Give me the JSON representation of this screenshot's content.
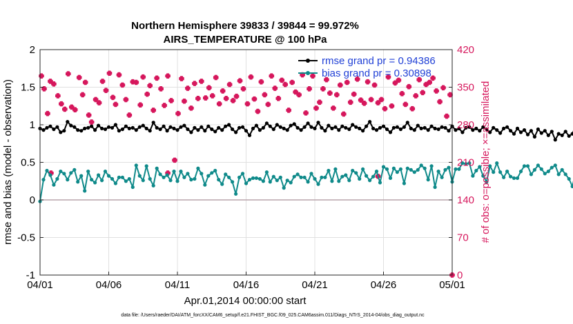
{
  "colors": {
    "rmse": "#000000",
    "bias": "#0f8a8a",
    "obs": "#d6175c",
    "legend_text": "#1f3fd6",
    "grid": "#e0e0e0",
    "zero_line": "#b9a3aa"
  },
  "chart_data": {
    "type": "line",
    "title": [
      "Northern Hemisphere 39833 / 39844 = 99.972%",
      "AIRS_TEMPERATURE @ 100 hPa"
    ],
    "xlabel": "Apr.01,2014 00:00:00 start",
    "ylabel": "rmse and bias (model - observation)",
    "ylabel_right": "# of obs: o=possible; ×=assimilated",
    "x_ticks": [
      "04/01",
      "04/06",
      "04/11",
      "04/16",
      "04/21",
      "04/26",
      "05/01"
    ],
    "xlim_days": [
      0,
      30
    ],
    "ylim": [
      -1,
      2
    ],
    "y_ticks": [
      "2",
      "1.5",
      "1",
      "0.5",
      "0",
      "-0.5",
      "-1"
    ],
    "ylim_right": [
      0,
      420
    ],
    "y_ticks_right": [
      "420",
      "350",
      "280",
      "210",
      "140",
      "70",
      "0"
    ],
    "legend": [
      {
        "name": "rmse grand pr = 0.94386",
        "series": "rmse"
      },
      {
        "name": "bias grand pr = 0.30898",
        "series": "bias"
      }
    ],
    "step_days": 0.25,
    "series": [
      {
        "name": "rmse",
        "values": [
          0.95,
          0.93,
          0.96,
          0.98,
          0.94,
          0.97,
          0.9,
          0.92,
          1.04,
          0.99,
          0.97,
          0.93,
          0.92,
          0.95,
          0.96,
          0.98,
          0.93,
          0.99,
          0.95,
          0.94,
          0.97,
          0.96,
          1.0,
          0.92,
          0.94,
          0.98,
          0.95,
          0.96,
          0.93,
          0.97,
          0.99,
          0.95,
          0.92,
          1.03,
          0.96,
          0.94,
          0.98,
          0.92,
          0.97,
          0.95,
          0.93,
          0.97,
          0.99,
          0.94,
          0.9,
          0.96,
          0.93,
          0.97,
          0.92,
          0.98,
          0.94,
          0.91,
          0.96,
          0.93,
          0.98,
          1.0,
          0.94,
          0.9,
          0.96,
          0.97,
          0.92,
          0.86,
          0.95,
          0.99,
          0.93,
          0.96,
          1.02,
          0.98,
          0.94,
          1.0,
          0.97,
          0.95,
          0.93,
          0.99,
          1.01,
          0.96,
          0.93,
          0.97,
          1.02,
          0.97,
          0.95,
          1.03,
          0.96,
          0.92,
          0.99,
          0.95,
          0.97,
          0.93,
          0.98,
          0.96,
          0.94,
          1.0,
          0.97,
          0.95,
          0.92,
          0.98,
          1.04,
          0.95,
          0.93,
          0.96,
          0.98,
          0.94,
          0.9,
          0.96,
          0.97,
          0.94,
          0.97,
          1.03,
          0.95,
          0.93,
          0.99,
          0.95,
          0.96,
          0.93,
          0.98,
          0.95,
          0.94,
          0.97,
          0.96,
          0.92,
          0.98,
          0.93,
          0.95,
          0.9,
          0.96,
          0.97,
          0.93,
          0.95,
          0.92,
          0.97,
          0.94,
          0.9,
          0.96,
          0.93,
          0.89,
          0.95,
          0.97,
          0.92,
          0.88,
          0.95,
          0.9,
          0.93,
          0.87,
          0.92,
          0.84,
          0.94,
          0.89,
          0.92,
          0.86,
          0.91,
          0.8,
          0.88,
          0.86,
          0.91,
          0.85,
          0.88,
          0.99,
          0.84,
          0.92,
          0.93
        ]
      },
      {
        "name": "bias",
        "values": [
          -0.02,
          0.27,
          0.39,
          0.33,
          0.2,
          0.28,
          0.38,
          0.35,
          0.27,
          0.36,
          0.4,
          0.24,
          0.32,
          0.12,
          0.38,
          0.27,
          0.23,
          0.33,
          0.26,
          0.38,
          0.32,
          0.28,
          0.22,
          0.3,
          0.3,
          0.25,
          0.28,
          0.17,
          0.46,
          0.32,
          0.26,
          0.45,
          0.28,
          0.19,
          0.42,
          0.34,
          0.3,
          0.33,
          0.26,
          0.38,
          0.25,
          0.38,
          0.3,
          0.35,
          0.27,
          0.28,
          0.42,
          0.35,
          0.2,
          0.32,
          0.36,
          0.39,
          0.27,
          0.21,
          0.34,
          0.3,
          0.24,
          0.08,
          0.3,
          0.35,
          0.22,
          0.27,
          0.29,
          0.29,
          0.28,
          0.25,
          0.37,
          0.24,
          0.31,
          0.26,
          0.3,
          0.16,
          0.26,
          0.23,
          0.31,
          0.34,
          0.3,
          0.3,
          0.24,
          0.35,
          0.28,
          0.21,
          0.3,
          0.3,
          0.39,
          0.25,
          0.41,
          0.25,
          0.31,
          0.33,
          0.26,
          0.39,
          0.36,
          0.28,
          0.41,
          0.32,
          0.26,
          0.31,
          0.38,
          0.23,
          0.44,
          0.41,
          0.29,
          0.42,
          0.37,
          0.41,
          0.22,
          0.42,
          0.4,
          0.37,
          0.4,
          0.46,
          0.42,
          0.27,
          0.45,
          0.17,
          0.38,
          0.3,
          0.4,
          0.43,
          0.24,
          0.41,
          0.41,
          0.49,
          0.48,
          0.49,
          0.32,
          0.39,
          0.44,
          0.32,
          0.24,
          0.45,
          0.37,
          0.49,
          0.37,
          0.3,
          0.38,
          0.31,
          0.29,
          0.29,
          0.38,
          0.45,
          0.45,
          0.34,
          0.4,
          0.46,
          0.41,
          0.35,
          0.38,
          0.43,
          0.46,
          0.34,
          0.4,
          0.34,
          0.28,
          0.18,
          0.38,
          0.36,
          0.21,
          0.38,
          0.28,
          0.38,
          0.44,
          0.35,
          0.29
        ]
      }
    ],
    "assimilated_obs": [
      {
        "day": 0.1,
        "count": 371
      },
      {
        "day": 0.3,
        "count": 347
      },
      {
        "day": 0.55,
        "count": 301
      },
      {
        "day": 0.75,
        "count": 361
      },
      {
        "day": 1.0,
        "count": 356
      },
      {
        "day": 1.3,
        "count": 334
      },
      {
        "day": 1.55,
        "count": 319
      },
      {
        "day": 1.8,
        "count": 309
      },
      {
        "day": 2.05,
        "count": 375
      },
      {
        "day": 2.3,
        "count": 313
      },
      {
        "day": 2.55,
        "count": 308
      },
      {
        "day": 2.85,
        "count": 368
      },
      {
        "day": 3.1,
        "count": 336
      },
      {
        "day": 3.3,
        "count": 359
      },
      {
        "day": 3.55,
        "count": 298
      },
      {
        "day": 3.75,
        "count": 285
      },
      {
        "day": 4.05,
        "count": 327
      },
      {
        "day": 4.3,
        "count": 321
      },
      {
        "day": 4.55,
        "count": 361
      },
      {
        "day": 4.8,
        "count": 344
      },
      {
        "day": 5.05,
        "count": 376
      },
      {
        "day": 5.3,
        "count": 331
      },
      {
        "day": 5.5,
        "count": 318
      },
      {
        "day": 5.75,
        "count": 373
      },
      {
        "day": 6.0,
        "count": 354
      },
      {
        "day": 6.25,
        "count": 327
      },
      {
        "day": 6.5,
        "count": 298
      },
      {
        "day": 6.75,
        "count": 360
      },
      {
        "day": 7.0,
        "count": 359
      },
      {
        "day": 7.3,
        "count": 317
      },
      {
        "day": 7.5,
        "count": 369
      },
      {
        "day": 7.8,
        "count": 337
      },
      {
        "day": 8.0,
        "count": 353
      },
      {
        "day": 8.25,
        "count": 307
      },
      {
        "day": 8.5,
        "count": 367
      },
      {
        "day": 8.8,
        "count": 347
      },
      {
        "day": 9.05,
        "count": 316
      },
      {
        "day": 9.3,
        "count": 371
      },
      {
        "day": 9.55,
        "count": 325
      },
      {
        "day": 9.8,
        "count": 214
      },
      {
        "day": 10.05,
        "count": 301
      },
      {
        "day": 10.3,
        "count": 366
      },
      {
        "day": 10.5,
        "count": 324
      },
      {
        "day": 10.75,
        "count": 348
      },
      {
        "day": 11.0,
        "count": 311
      },
      {
        "day": 11.25,
        "count": 357
      },
      {
        "day": 11.5,
        "count": 329
      },
      {
        "day": 11.75,
        "count": 361
      },
      {
        "day": 12.05,
        "count": 330
      },
      {
        "day": 12.3,
        "count": 349
      },
      {
        "day": 12.55,
        "count": 334
      },
      {
        "day": 12.8,
        "count": 368
      },
      {
        "day": 13.05,
        "count": 319
      },
      {
        "day": 13.3,
        "count": 343
      },
      {
        "day": 13.55,
        "count": 329
      },
      {
        "day": 13.8,
        "count": 355
      },
      {
        "day": 14.05,
        "count": 325
      },
      {
        "day": 14.3,
        "count": 333
      },
      {
        "day": 14.55,
        "count": 362
      },
      {
        "day": 14.8,
        "count": 347
      },
      {
        "day": 15.1,
        "count": 319
      },
      {
        "day": 15.35,
        "count": 369
      },
      {
        "day": 15.6,
        "count": 328
      },
      {
        "day": 15.85,
        "count": 305
      },
      {
        "day": 16.1,
        "count": 360
      },
      {
        "day": 16.35,
        "count": 336
      },
      {
        "day": 16.6,
        "count": 318
      },
      {
        "day": 16.85,
        "count": 371
      },
      {
        "day": 17.1,
        "count": 348
      },
      {
        "day": 17.35,
        "count": 329
      },
      {
        "day": 17.6,
        "count": 363
      },
      {
        "day": 17.85,
        "count": 355
      },
      {
        "day": 18.1,
        "count": 307
      },
      {
        "day": 18.35,
        "count": 359
      },
      {
        "day": 18.6,
        "count": 341
      },
      {
        "day": 18.85,
        "count": 336
      },
      {
        "day": 19.1,
        "count": 373
      },
      {
        "day": 19.35,
        "count": 302
      },
      {
        "day": 19.6,
        "count": 347
      },
      {
        "day": 19.85,
        "count": 371
      },
      {
        "day": 20.1,
        "count": 311
      },
      {
        "day": 20.35,
        "count": 322
      },
      {
        "day": 20.6,
        "count": 347
      },
      {
        "day": 20.85,
        "count": 364
      },
      {
        "day": 21.1,
        "count": 339
      },
      {
        "day": 21.35,
        "count": 311
      },
      {
        "day": 21.6,
        "count": 336
      },
      {
        "day": 21.85,
        "count": 354
      },
      {
        "day": 22.1,
        "count": 300
      },
      {
        "day": 22.35,
        "count": 359
      },
      {
        "day": 22.6,
        "count": 322
      },
      {
        "day": 22.85,
        "count": 337
      },
      {
        "day": 23.1,
        "count": 365
      },
      {
        "day": 23.35,
        "count": 326
      },
      {
        "day": 23.6,
        "count": 320
      },
      {
        "day": 23.85,
        "count": 360
      },
      {
        "day": 24.1,
        "count": 327
      },
      {
        "day": 24.35,
        "count": 354
      },
      {
        "day": 24.6,
        "count": 321
      },
      {
        "day": 24.85,
        "count": 327
      },
      {
        "day": 25.1,
        "count": 310
      },
      {
        "day": 25.35,
        "count": 369
      },
      {
        "day": 25.6,
        "count": 315
      },
      {
        "day": 25.85,
        "count": 358
      },
      {
        "day": 26.1,
        "count": 363
      },
      {
        "day": 26.35,
        "count": 338
      },
      {
        "day": 26.6,
        "count": 318
      },
      {
        "day": 26.85,
        "count": 351
      },
      {
        "day": 27.1,
        "count": 310
      },
      {
        "day": 27.35,
        "count": 334
      },
      {
        "day": 27.6,
        "count": 364
      },
      {
        "day": 27.85,
        "count": 340
      },
      {
        "day": 28.1,
        "count": 355
      },
      {
        "day": 28.35,
        "count": 359
      },
      {
        "day": 28.6,
        "count": 367
      },
      {
        "day": 28.85,
        "count": 343
      },
      {
        "day": 29.1,
        "count": 323
      },
      {
        "day": 29.35,
        "count": 349
      },
      {
        "day": 29.6,
        "count": 296
      },
      {
        "day": 29.85,
        "count": 336
      },
      {
        "day": 30.0,
        "count": 0
      },
      {
        "day": 0.8,
        "count": 190
      },
      {
        "day": 9.3,
        "count": 190
      },
      {
        "day": 24.6,
        "count": 184
      }
    ],
    "footer": "data file: /Users/raeder/DAI/ATM_forcXX/CAM6_setup/f.e21.FHIST_BGC.f09_025.CAM6assim.011/Diags_NTrS_2014-04/obs_diag_output.nc"
  }
}
